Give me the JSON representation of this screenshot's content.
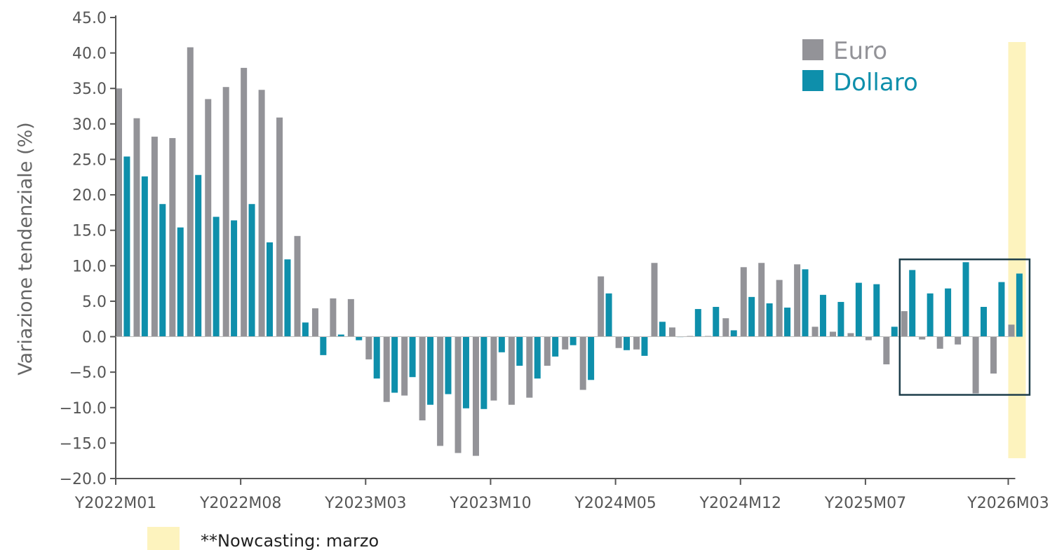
{
  "chart_data": {
    "type": "bar",
    "ylabel": "Variazione tendenziale (%)",
    "ylim": [
      -20,
      45
    ],
    "y_ticks": [
      "45.0",
      "40.0",
      "35.0",
      "30.0",
      "25.0",
      "20.0",
      "15.0",
      "10.0",
      "5.0",
      "0.0",
      "−5.0",
      "−10.0",
      "−15.0",
      "−20.0"
    ],
    "x_tick_labels": [
      {
        "label": "Y2022M01",
        "index": 0
      },
      {
        "label": "Y2022M08",
        "index": 7
      },
      {
        "label": "Y2023M03",
        "index": 14
      },
      {
        "label": "Y2023M10",
        "index": 21
      },
      {
        "label": "Y2024M05",
        "index": 28
      },
      {
        "label": "Y2024M12",
        "index": 35
      },
      {
        "label": "Y2025M07",
        "index": 42
      },
      {
        "label": "Y2026M03",
        "index": 50
      }
    ],
    "categories": [
      "Y2022M01",
      "Y2022M02",
      "Y2022M03",
      "Y2022M04",
      "Y2022M05",
      "Y2022M06",
      "Y2022M07",
      "Y2022M08",
      "Y2022M09",
      "Y2022M10",
      "Y2022M11",
      "Y2022M12",
      "Y2023M01",
      "Y2023M02",
      "Y2023M03",
      "Y2023M04",
      "Y2023M05",
      "Y2023M06",
      "Y2023M07",
      "Y2023M08",
      "Y2023M09",
      "Y2023M10",
      "Y2023M11",
      "Y2023M12",
      "Y2024M01",
      "Y2024M02",
      "Y2024M03",
      "Y2024M04",
      "Y2024M05",
      "Y2024M06",
      "Y2024M07",
      "Y2024M08",
      "Y2024M09",
      "Y2024M10",
      "Y2024M11",
      "Y2024M12",
      "Y2025M01",
      "Y2025M02",
      "Y2025M03",
      "Y2025M04",
      "Y2025M05",
      "Y2025M06",
      "Y2025M07",
      "Y2025M08",
      "Y2025M09",
      "Y2025M10",
      "Y2025M11",
      "Y2025M12",
      "Y2026M01",
      "Y2026M02",
      "Y2026M03"
    ],
    "series": [
      {
        "name": "Euro",
        "color": "#939398",
        "values": [
          35.0,
          30.8,
          28.2,
          28.0,
          40.8,
          33.5,
          35.2,
          37.9,
          34.8,
          30.9,
          14.2,
          4.0,
          5.4,
          5.3,
          -3.2,
          -9.2,
          -8.3,
          -11.8,
          -15.4,
          -16.4,
          -16.8,
          -9.0,
          -9.6,
          -8.6,
          -4.1,
          -1.8,
          -7.5,
          8.5,
          -1.6,
          -1.8,
          10.4,
          1.3,
          0.1,
          0.1,
          2.6,
          9.8,
          10.4,
          8.0,
          10.2,
          1.4,
          0.7,
          0.5,
          -0.5,
          -3.9,
          3.6,
          -0.4,
          -1.7,
          -1.1,
          -8.0,
          -5.2,
          1.7
        ]
      },
      {
        "name": "Dollaro",
        "color": "#0e8fab",
        "values": [
          25.4,
          22.6,
          18.7,
          15.4,
          22.8,
          16.9,
          16.4,
          18.7,
          13.3,
          10.9,
          2.0,
          -2.6,
          0.3,
          -0.5,
          -5.9,
          -7.9,
          -5.7,
          -9.6,
          -8.1,
          -10.1,
          -10.2,
          -2.2,
          -4.1,
          -5.9,
          -2.8,
          -1.2,
          -6.1,
          6.1,
          -1.9,
          -2.7,
          2.1,
          0.0,
          3.9,
          4.2,
          0.9,
          5.6,
          4.7,
          4.1,
          9.5,
          5.9,
          4.9,
          7.6,
          7.4,
          1.4,
          9.4,
          6.1,
          6.8,
          10.5,
          4.2,
          7.7,
          8.9
        ]
      }
    ],
    "legend": {
      "position": "top-right"
    },
    "nowcast_highlight": {
      "index": 50,
      "color": "#fdf3be"
    },
    "highlight_box": {
      "from_index": 44,
      "to_index": 50,
      "y_range": [
        -8.2,
        10.9
      ],
      "color": "#1d3d4a"
    },
    "note": "**Nowcasting: marzo",
    "colors": {
      "axis": "#555555",
      "text": "#555555"
    }
  }
}
